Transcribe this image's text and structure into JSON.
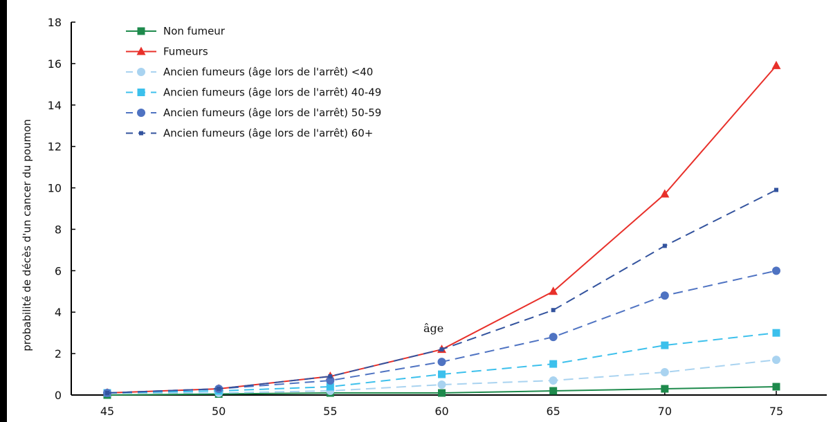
{
  "chart_data": {
    "type": "line",
    "title": "",
    "xlabel": "",
    "ylabel": "probabilité de décès d'un cancer du poumon",
    "x": [
      45,
      50,
      55,
      60,
      65,
      70,
      75
    ],
    "xlim": [
      45,
      75
    ],
    "ylim": [
      0,
      18
    ],
    "yticks": [
      0,
      2,
      4,
      6,
      8,
      10,
      12,
      14,
      16,
      18
    ],
    "grid": false,
    "legend_position": "top-left",
    "annotation": "âge",
    "series": [
      {
        "name": "Non fumeur",
        "color": "#1e8a4c",
        "marker": "square",
        "dashed": false,
        "values": [
          0.0,
          0.05,
          0.1,
          0.1,
          0.2,
          0.3,
          0.4
        ]
      },
      {
        "name": "Fumeurs",
        "color": "#e8302a",
        "marker": "triangle",
        "dashed": false,
        "values": [
          0.1,
          0.3,
          0.9,
          2.2,
          5.0,
          9.7,
          15.9
        ]
      },
      {
        "name": "Ancien fumeurs (âge lors de l'arrêt) <40",
        "color": "#a9d3f0",
        "marker": "circle",
        "dashed": true,
        "values": [
          0.1,
          0.1,
          0.2,
          0.5,
          0.7,
          1.1,
          1.7
        ]
      },
      {
        "name": "Ancien fumeurs (âge lors de l'arrêt) 40-49",
        "color": "#3cc0ec",
        "marker": "square",
        "dashed": true,
        "values": [
          0.1,
          0.2,
          0.4,
          1.0,
          1.5,
          2.4,
          3.0
        ]
      },
      {
        "name": "Ancien fumeurs (âge lors de l'arrêt) 50-59",
        "color": "#4f73c2",
        "marker": "circle",
        "dashed": true,
        "values": [
          0.1,
          0.3,
          0.7,
          1.6,
          2.8,
          4.8,
          6.0
        ]
      },
      {
        "name": "Ancien fumeurs (âge lors de l'arrêt) 60+",
        "color": "#33539e",
        "marker": "small-square",
        "dashed": true,
        "values": [
          0.1,
          0.3,
          0.9,
          2.2,
          4.1,
          7.2,
          9.9
        ]
      }
    ]
  }
}
